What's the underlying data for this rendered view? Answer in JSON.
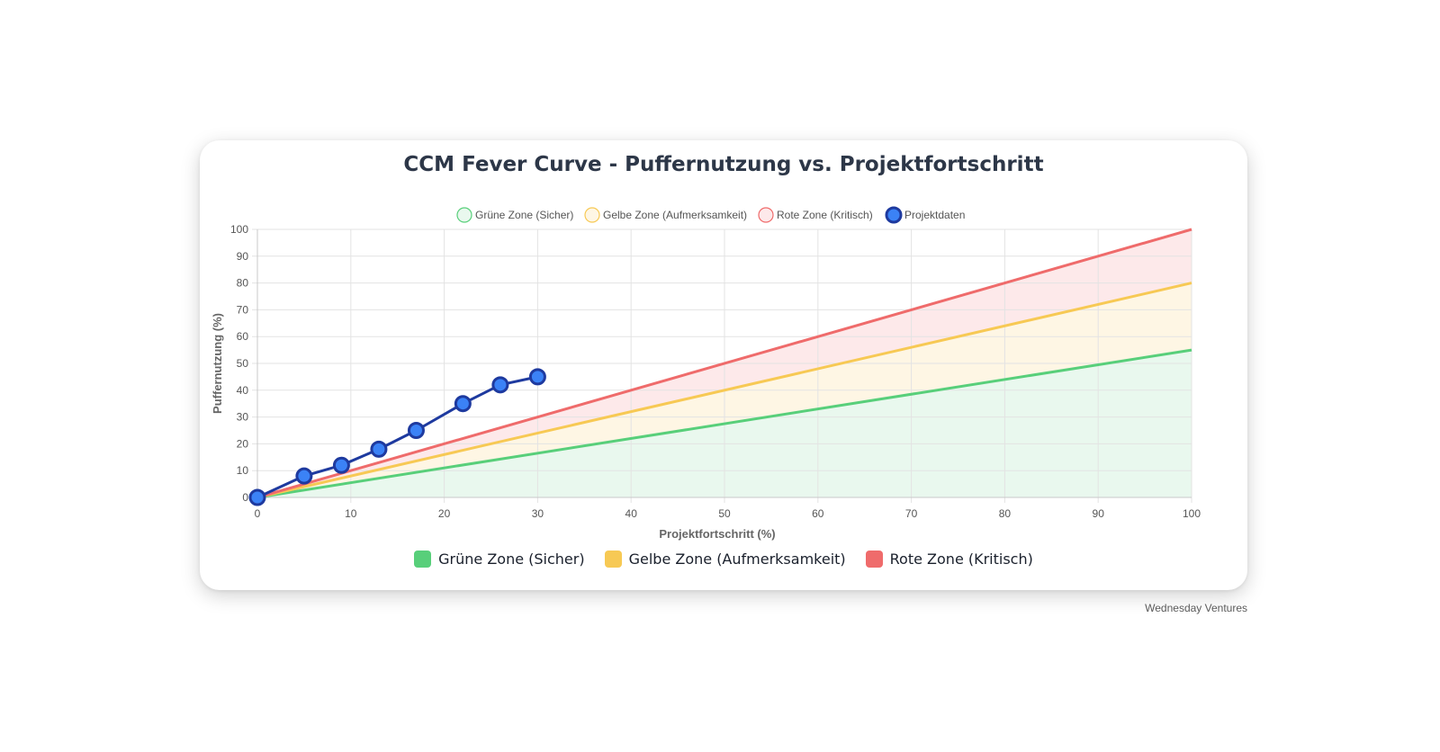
{
  "title": "CCM Fever Curve - Puffernutzung vs. Projektfortschritt",
  "watermark": "Wednesday Ventures",
  "bottom_legend": [
    {
      "label": "Grüne Zone (Sicher)",
      "color": "#58cf7a"
    },
    {
      "label": "Gelbe Zone (Aufmerksamkeit)",
      "color": "#f7c954"
    },
    {
      "label": "Rote Zone (Kritisch)",
      "color": "#ef6b6b"
    }
  ],
  "chart_data": {
    "type": "line",
    "xlabel": "Projektfortschritt (%)",
    "ylabel": "Puffernutzung (%)",
    "xlim": [
      0,
      100
    ],
    "ylim": [
      0,
      100
    ],
    "xticks": [
      0,
      10,
      20,
      30,
      40,
      50,
      60,
      70,
      80,
      90,
      100
    ],
    "yticks": [
      0,
      10,
      20,
      30,
      40,
      50,
      60,
      70,
      80,
      90,
      100
    ],
    "grid": true,
    "legend_position": "top",
    "series": [
      {
        "name": "Grüne Zone (Sicher)",
        "kind": "zone",
        "x": [
          0,
          100
        ],
        "y": [
          0,
          55
        ],
        "line_color": "#58cf7a",
        "fill_color": "#e9f8ee"
      },
      {
        "name": "Gelbe Zone (Aufmerksamkeit)",
        "kind": "zone",
        "x": [
          0,
          100
        ],
        "y": [
          0,
          80
        ],
        "line_color": "#f7c954",
        "fill_color": "#fef6e4"
      },
      {
        "name": "Rote Zone (Kritisch)",
        "kind": "zone",
        "x": [
          0,
          100
        ],
        "y": [
          0,
          100
        ],
        "line_color": "#ef6b6b",
        "fill_color": "#fde9ea"
      },
      {
        "name": "Projektdaten",
        "kind": "data",
        "x": [
          0,
          5,
          9,
          13,
          17,
          22,
          26,
          30
        ],
        "y": [
          0,
          8,
          12,
          18,
          25,
          35,
          42,
          45
        ],
        "line_color": "#1e3a9f",
        "point_color": "#3b82f6"
      }
    ]
  }
}
